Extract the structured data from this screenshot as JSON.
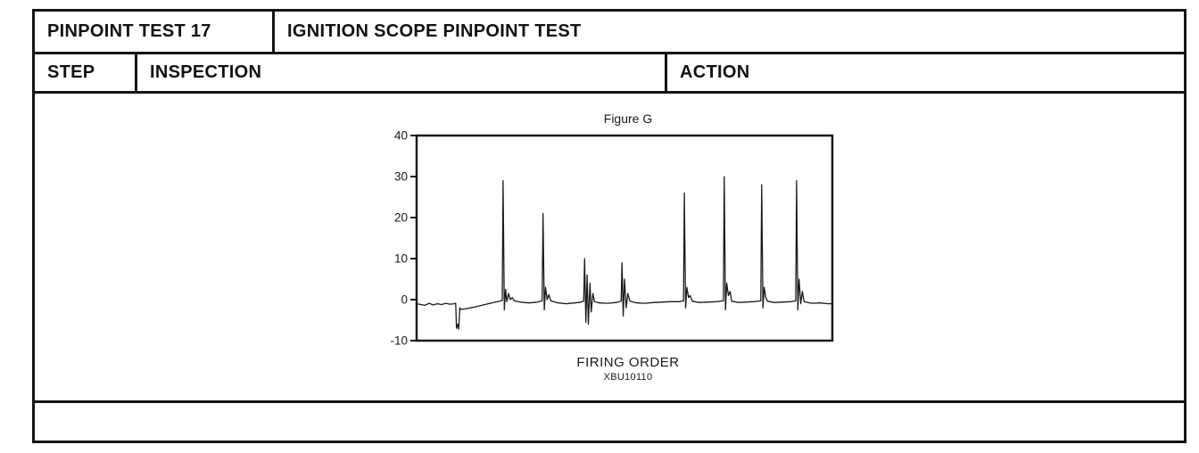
{
  "document": {
    "header": {
      "test_id": "PINPOINT TEST 17",
      "test_title": "IGNITION SCOPE PINPOINT TEST"
    },
    "columns": {
      "step": "STEP",
      "inspection": "INSPECTION",
      "action": "ACTION"
    }
  },
  "figure": {
    "title": "Figure G",
    "xlabel": "FIRING ORDER",
    "code": "XBU10110"
  },
  "chart_data": {
    "type": "line",
    "title": "Figure G",
    "xlabel": "FIRING ORDER",
    "ylabel": "",
    "ylim": [
      -10,
      40
    ],
    "xlim": [
      0,
      100
    ],
    "yticks": [
      40,
      30,
      20,
      10,
      0,
      -10
    ],
    "grid": false,
    "legend": "none",
    "line_color": "#1a1a1a",
    "caption": "XBU10110",
    "series": [
      {
        "name": "ignition-scope-trace",
        "points": [
          [
            0,
            -1
          ],
          [
            2,
            -1.4
          ],
          [
            3,
            -0.9
          ],
          [
            4,
            -1.3
          ],
          [
            5,
            -1
          ],
          [
            6,
            -1.2
          ],
          [
            7,
            -0.9
          ],
          [
            8,
            -1.1
          ],
          [
            9,
            -1
          ],
          [
            9.4,
            -0.9
          ],
          [
            9.6,
            -7
          ],
          [
            9.9,
            -6
          ],
          [
            10.1,
            -7.2
          ],
          [
            10.4,
            -2
          ],
          [
            10.6,
            -2.4
          ],
          [
            12,
            -2.2
          ],
          [
            14,
            -1.8
          ],
          [
            16,
            -1.3
          ],
          [
            18,
            -0.8
          ],
          [
            20,
            -0.4
          ],
          [
            20.6,
            -0.2
          ],
          [
            20.8,
            29
          ],
          [
            21.1,
            -2.5
          ],
          [
            21.4,
            2.5
          ],
          [
            21.7,
            -0.5
          ],
          [
            22.1,
            1.5
          ],
          [
            22.5,
            0
          ],
          [
            23,
            0.5
          ],
          [
            23.5,
            -0.3
          ],
          [
            25,
            -0.6
          ],
          [
            27,
            -0.8
          ],
          [
            29,
            -0.6
          ],
          [
            30.2,
            -0.3
          ],
          [
            30.4,
            21
          ],
          [
            30.7,
            -2.5
          ],
          [
            31,
            3
          ],
          [
            31.4,
            0
          ],
          [
            31.8,
            1.2
          ],
          [
            32.3,
            -0.3
          ],
          [
            34,
            -0.8
          ],
          [
            36,
            -1
          ],
          [
            38,
            -0.8
          ],
          [
            39.5,
            -0.6
          ],
          [
            40.2,
            -0.4
          ],
          [
            40.4,
            10
          ],
          [
            40.7,
            -5.5
          ],
          [
            41,
            6
          ],
          [
            41.3,
            -6
          ],
          [
            41.7,
            4
          ],
          [
            42,
            -3
          ],
          [
            42.4,
            1.5
          ],
          [
            42.8,
            -0.5
          ],
          [
            44,
            -0.8
          ],
          [
            46,
            -0.9
          ],
          [
            48,
            -0.7
          ],
          [
            49.2,
            -0.4
          ],
          [
            49.4,
            9
          ],
          [
            49.7,
            -4
          ],
          [
            50,
            5
          ],
          [
            50.4,
            -2
          ],
          [
            50.8,
            1.5
          ],
          [
            51.3,
            -0.4
          ],
          [
            53,
            -0.8
          ],
          [
            55,
            -0.9
          ],
          [
            57,
            -0.7
          ],
          [
            59,
            -0.6
          ],
          [
            61,
            -0.5
          ],
          [
            63,
            -0.5
          ],
          [
            64.2,
            -0.3
          ],
          [
            64.4,
            26
          ],
          [
            64.7,
            -2
          ],
          [
            65,
            3
          ],
          [
            65.4,
            0.5
          ],
          [
            65.8,
            1
          ],
          [
            66.3,
            -0.4
          ],
          [
            68,
            -0.7
          ],
          [
            70,
            -0.6
          ],
          [
            72,
            -0.5
          ],
          [
            73.8,
            -0.3
          ],
          [
            74,
            30
          ],
          [
            74.3,
            -2.5
          ],
          [
            74.6,
            4
          ],
          [
            75,
            1
          ],
          [
            75.4,
            2
          ],
          [
            75.8,
            -0.4
          ],
          [
            77.5,
            -0.7
          ],
          [
            79,
            -0.6
          ],
          [
            81,
            -0.5
          ],
          [
            82.8,
            -0.3
          ],
          [
            83,
            28
          ],
          [
            83.3,
            -2
          ],
          [
            83.6,
            3
          ],
          [
            84,
            0.5
          ],
          [
            84.4,
            -0.4
          ],
          [
            86,
            -0.7
          ],
          [
            88,
            -0.6
          ],
          [
            90,
            -0.5
          ],
          [
            91.2,
            -0.3
          ],
          [
            91.4,
            29
          ],
          [
            91.7,
            -2.5
          ],
          [
            92,
            5
          ],
          [
            92.4,
            -1
          ],
          [
            92.8,
            2
          ],
          [
            93.2,
            -0.5
          ],
          [
            95,
            -0.9
          ],
          [
            97,
            -0.8
          ],
          [
            99,
            -1
          ],
          [
            100,
            -1
          ]
        ]
      }
    ]
  }
}
